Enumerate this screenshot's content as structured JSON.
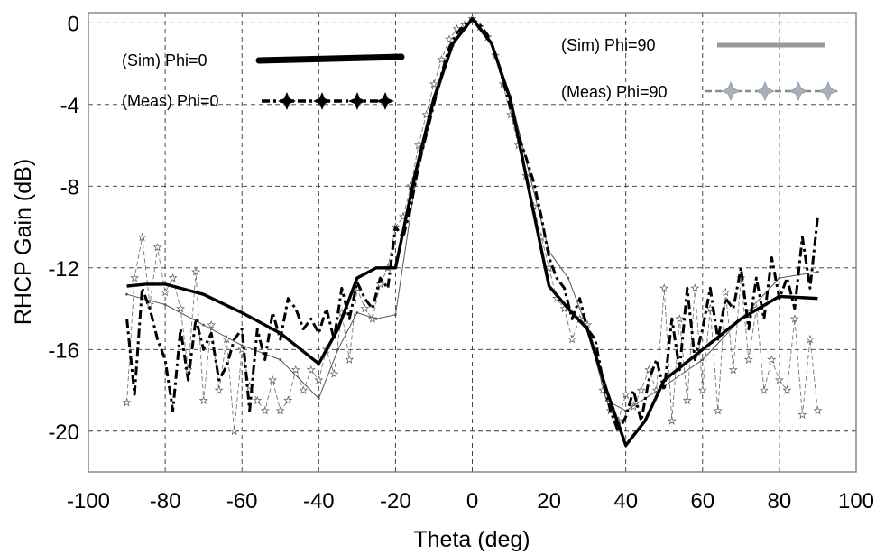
{
  "chart_data": {
    "type": "line",
    "xlabel": "Theta (deg)",
    "ylabel": "RHCP Gain (dB)",
    "xlim": [
      -100,
      100
    ],
    "ylim": [
      -22,
      0.5
    ],
    "xticks": [
      -100,
      -80,
      -60,
      -40,
      -20,
      0,
      20,
      40,
      60,
      80,
      100
    ],
    "yticks": [
      0,
      -4,
      -8,
      -12,
      -16,
      -20
    ],
    "grid": "dashed",
    "legend_placement": "top",
    "series": [
      {
        "name": "(Sim) Phi=0",
        "color": "#000000",
        "style": "thick-solid",
        "x": [
          -90,
          -85,
          -80,
          -70,
          -60,
          -50,
          -40,
          -35,
          -30,
          -25,
          -20,
          -15,
          -10,
          -5,
          0,
          5,
          10,
          15,
          20,
          25,
          30,
          35,
          40,
          45,
          50,
          60,
          70,
          80,
          90
        ],
        "y": [
          -12.9,
          -12.8,
          -12.8,
          -13.3,
          -14.2,
          -15.2,
          -16.7,
          -15.0,
          -12.5,
          -12.0,
          -12.0,
          -7.5,
          -3.7,
          -1.0,
          0.2,
          -1.0,
          -3.8,
          -8.4,
          -12.9,
          -14.0,
          -15.0,
          -18.0,
          -20.7,
          -19.5,
          -17.5,
          -16.0,
          -14.5,
          -13.4,
          -13.5
        ]
      },
      {
        "name": "(Meas) Phi=0",
        "color": "#000000",
        "style": "thick-dashdot",
        "x": [
          -90,
          -88,
          -86,
          -84,
          -82,
          -80,
          -78,
          -76,
          -74,
          -72,
          -70,
          -68,
          -66,
          -64,
          -62,
          -60,
          -58,
          -56,
          -54,
          -52,
          -50,
          -48,
          -46,
          -44,
          -42,
          -40,
          -38,
          -36,
          -34,
          -32,
          -30,
          -28,
          -26,
          -24,
          -22,
          -20,
          -18,
          -16,
          -14,
          -12,
          -10,
          -8,
          -6,
          -4,
          -2,
          0,
          2,
          4,
          6,
          8,
          10,
          12,
          14,
          16,
          18,
          20,
          22,
          24,
          26,
          28,
          30,
          32,
          34,
          36,
          38,
          40,
          42,
          44,
          46,
          48,
          50,
          52,
          54,
          56,
          58,
          60,
          62,
          64,
          66,
          68,
          70,
          72,
          74,
          76,
          78,
          80,
          82,
          84,
          86,
          88,
          90
        ],
        "y": [
          -14.5,
          -18.2,
          -13.0,
          -14.0,
          -15.5,
          -16.5,
          -19.0,
          -15.0,
          -17.5,
          -14.5,
          -16.0,
          -15.2,
          -17.5,
          -16.8,
          -15.5,
          -15.0,
          -19.0,
          -15.0,
          -16.5,
          -14.2,
          -15.5,
          -13.5,
          -14.0,
          -15.0,
          -14.5,
          -15.2,
          -14.0,
          -15.5,
          -13.0,
          -14.5,
          -12.7,
          -13.5,
          -14.0,
          -12.5,
          -13.0,
          -10.0,
          -10.5,
          -9.0,
          -7.0,
          -5.5,
          -4.0,
          -2.5,
          -1.2,
          -0.5,
          -0.1,
          0.2,
          -0.1,
          -0.6,
          -1.5,
          -2.8,
          -4.2,
          -5.5,
          -6.6,
          -7.8,
          -9.5,
          -11.5,
          -12.5,
          -13.0,
          -14.5,
          -13.5,
          -15.0,
          -15.5,
          -17.5,
          -19.0,
          -20.0,
          -19.3,
          -18.0,
          -19.5,
          -17.5,
          -16.5,
          -18.0,
          -14.5,
          -17.0,
          -13.0,
          -16.5,
          -15.0,
          -13.0,
          -15.5,
          -13.5,
          -14.0,
          -12.0,
          -15.0,
          -12.5,
          -14.5,
          -11.5,
          -13.5,
          -12.5,
          -14.0,
          -10.5,
          -13.0,
          -9.5
        ]
      },
      {
        "name": "(Sim) Phi=90",
        "color": "#555555",
        "style": "thin-solid",
        "x": [
          -90,
          -80,
          -70,
          -60,
          -50,
          -40,
          -35,
          -30,
          -25,
          -20,
          -15,
          -10,
          -5,
          0,
          5,
          10,
          15,
          20,
          25,
          30,
          35,
          40,
          50,
          60,
          70,
          80,
          90
        ],
        "y": [
          -13.3,
          -13.8,
          -14.8,
          -15.8,
          -16.5,
          -18.4,
          -16.0,
          -14.2,
          -14.5,
          -14.3,
          -8.0,
          -4.0,
          -1.1,
          0.2,
          -1.0,
          -3.6,
          -7.5,
          -11.2,
          -12.5,
          -15.0,
          -18.5,
          -19.0,
          -17.8,
          -16.5,
          -14.5,
          -12.5,
          -12.2
        ]
      },
      {
        "name": "(Meas) Phi=90",
        "color": "#777777",
        "style": "thin-dash-star",
        "x": [
          -90,
          -88,
          -86,
          -84,
          -82,
          -80,
          -78,
          -76,
          -74,
          -72,
          -70,
          -68,
          -66,
          -64,
          -62,
          -60,
          -58,
          -56,
          -54,
          -52,
          -50,
          -48,
          -46,
          -44,
          -42,
          -40,
          -38,
          -36,
          -34,
          -32,
          -30,
          -28,
          -26,
          -24,
          -22,
          -20,
          -18,
          -16,
          -14,
          -12,
          -10,
          -8,
          -6,
          -4,
          -2,
          0,
          2,
          4,
          6,
          8,
          10,
          12,
          14,
          16,
          18,
          20,
          22,
          24,
          26,
          28,
          30,
          32,
          34,
          36,
          38,
          40,
          42,
          44,
          46,
          48,
          50,
          52,
          54,
          56,
          58,
          60,
          62,
          64,
          66,
          68,
          70,
          72,
          74,
          76,
          78,
          80,
          82,
          84,
          86,
          88,
          90
        ],
        "y": [
          -18.6,
          -12.5,
          -10.5,
          -13.8,
          -11.0,
          -13.2,
          -12.5,
          -14.0,
          -17.0,
          -12.2,
          -18.5,
          -14.8,
          -18.0,
          -15.5,
          -20.0,
          -16.0,
          -17.8,
          -18.5,
          -19.0,
          -17.5,
          -19.0,
          -18.5,
          -17.0,
          -18.0,
          -17.0,
          -17.5,
          -16.0,
          -17.2,
          -14.2,
          -16.5,
          -13.0,
          -14.0,
          -14.5,
          -12.8,
          -12.0,
          -10.0,
          -9.5,
          -8.0,
          -6.0,
          -4.5,
          -3.0,
          -1.8,
          -0.8,
          -0.3,
          -0.1,
          0.2,
          -0.2,
          -0.7,
          -1.6,
          -3.0,
          -4.5,
          -6.0,
          -7.5,
          -9.0,
          -10.5,
          -12.0,
          -13.5,
          -14.0,
          -15.5,
          -14.5,
          -14.8,
          -16.0,
          -18.0,
          -19.0,
          -19.5,
          -18.2,
          -18.8,
          -18.0,
          -17.0,
          -18.0,
          -13.0,
          -19.5,
          -14.5,
          -18.5,
          -13.0,
          -18.0,
          -14.0,
          -19.0,
          -13.2,
          -17.0,
          -12.5,
          -16.5,
          -14.0,
          -18.0,
          -16.5,
          -17.5,
          -18.0,
          -14.5,
          -19.2,
          -15.5,
          -19.0
        ]
      }
    ]
  }
}
